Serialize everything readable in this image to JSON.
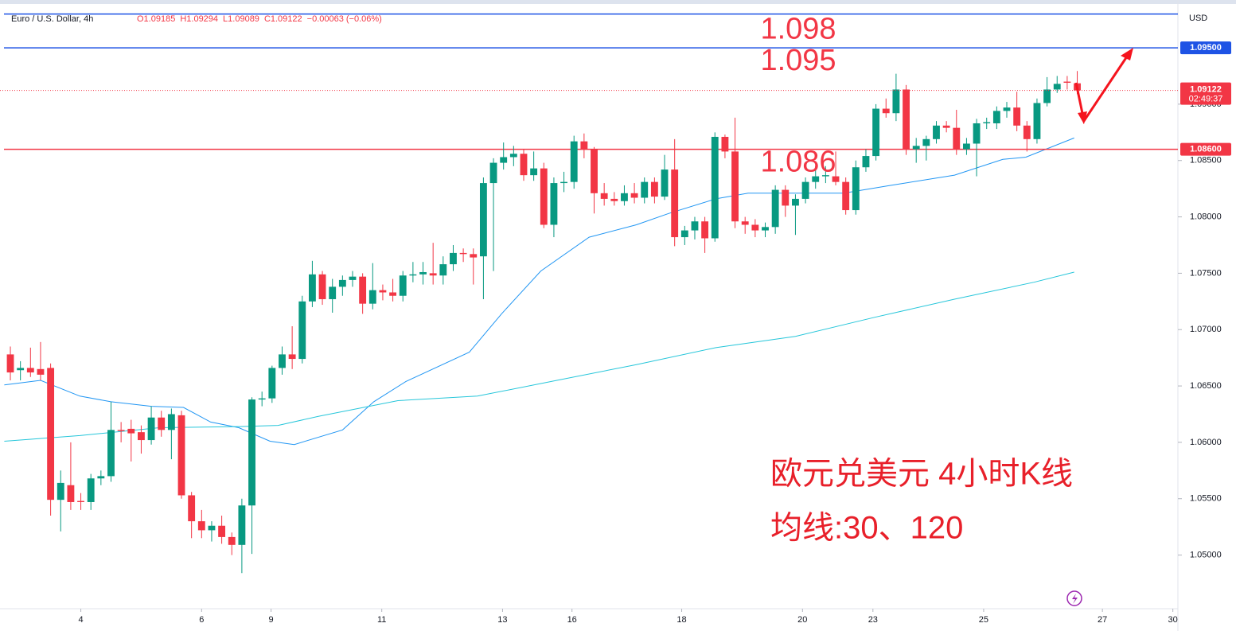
{
  "chart_data": {
    "type": "candlestick",
    "title": "Euro / U.S. Dollar, 4h",
    "ohlc_labels": [
      "O1.09185",
      "H1.09294",
      "L1.09089",
      "C1.09122",
      "−0.00063 (−0.06%)"
    ],
    "axis_unit": "USD",
    "up_color": "#089981",
    "down_color": "#f23645",
    "candles": [
      [
        1.0678,
        1.0685,
        1.0655,
        1.0662
      ],
      [
        1.0664,
        1.0672,
        1.0655,
        1.0666
      ],
      [
        1.0666,
        1.0684,
        1.0658,
        1.0662
      ],
      [
        1.0665,
        1.0689,
        1.0655,
        1.066
      ],
      [
        1.0666,
        1.067,
        1.0535,
        1.0549
      ],
      [
        1.0549,
        1.0575,
        1.0521,
        1.0564
      ],
      [
        1.0562,
        1.06,
        1.054,
        1.0547
      ],
      [
        1.0548,
        1.0555,
        1.054,
        1.0547
      ],
      [
        1.0547,
        1.0572,
        1.054,
        1.0568
      ],
      [
        1.0568,
        1.0575,
        1.0562,
        1.057
      ],
      [
        1.057,
        1.0636,
        1.0565,
        1.0611
      ],
      [
        1.0611,
        1.0618,
        1.06,
        1.061
      ],
      [
        1.0612,
        1.062,
        1.0583,
        1.0608
      ],
      [
        1.0609,
        1.0615,
        1.059,
        1.0602
      ],
      [
        1.0602,
        1.0632,
        1.0598,
        1.0622
      ],
      [
        1.0622,
        1.0628,
        1.0605,
        1.0611
      ],
      [
        1.0611,
        1.063,
        1.0585,
        1.0625
      ],
      [
        1.0624,
        1.0628,
        1.055,
        1.0553
      ],
      [
        1.0553,
        1.0556,
        1.0515,
        1.053
      ],
      [
        1.053,
        1.054,
        1.0515,
        1.0522
      ],
      [
        1.0522,
        1.053,
        1.0512,
        1.0526
      ],
      [
        1.0526,
        1.0535,
        1.051,
        1.0516
      ],
      [
        1.0516,
        1.052,
        1.05,
        1.0509
      ],
      [
        1.0509,
        1.055,
        1.0484,
        1.0544
      ],
      [
        1.0544,
        1.064,
        1.0501,
        1.0638
      ],
      [
        1.0638,
        1.0645,
        1.0632,
        1.0639
      ],
      [
        1.0639,
        1.0668,
        1.0635,
        1.0666
      ],
      [
        1.0666,
        1.0685,
        1.066,
        1.0678
      ],
      [
        1.0678,
        1.0703,
        1.0665,
        1.0674
      ],
      [
        1.0674,
        1.073,
        1.067,
        1.0725
      ],
      [
        1.0725,
        1.0761,
        1.072,
        1.0749
      ],
      [
        1.0749,
        1.0752,
        1.0722,
        1.0727
      ],
      [
        1.0727,
        1.0745,
        1.0715,
        1.0738
      ],
      [
        1.0738,
        1.0748,
        1.073,
        1.0744
      ],
      [
        1.0744,
        1.0752,
        1.0738,
        1.0747
      ],
      [
        1.0747,
        1.075,
        1.0714,
        1.0723
      ],
      [
        1.0723,
        1.0759,
        1.0718,
        1.0735
      ],
      [
        1.0735,
        1.074,
        1.0726,
        1.0733
      ],
      [
        1.0733,
        1.0745,
        1.0725,
        1.073
      ],
      [
        1.073,
        1.0752,
        1.0725,
        1.0748
      ],
      [
        1.0748,
        1.076,
        1.0742,
        1.0749
      ],
      [
        1.0749,
        1.076,
        1.074,
        1.0751
      ],
      [
        1.075,
        1.0777,
        1.074,
        1.0748
      ],
      [
        1.0748,
        1.0765,
        1.074,
        1.0758
      ],
      [
        1.0758,
        1.0775,
        1.0752,
        1.0768
      ],
      [
        1.0768,
        1.0772,
        1.076,
        1.0767
      ],
      [
        1.0767,
        1.0772,
        1.074,
        1.0764
      ],
      [
        1.0765,
        1.0835,
        1.0727,
        1.083
      ],
      [
        1.083,
        1.0852,
        1.0752,
        1.0848
      ],
      [
        1.0848,
        1.0866,
        1.0842,
        1.0853
      ],
      [
        1.0853,
        1.0863,
        1.0845,
        1.0856
      ],
      [
        1.0856,
        1.086,
        1.0832,
        1.0837
      ],
      [
        1.0837,
        1.0858,
        1.0832,
        1.0843
      ],
      [
        1.0843,
        1.0848,
        1.079,
        1.0793
      ],
      [
        1.0793,
        1.0835,
        1.0782,
        1.083
      ],
      [
        1.083,
        1.084,
        1.0822,
        1.0831
      ],
      [
        1.0831,
        1.0872,
        1.0825,
        1.0867
      ],
      [
        1.0867,
        1.0874,
        1.0852,
        1.086
      ],
      [
        1.086,
        1.0862,
        1.0803,
        1.0821
      ],
      [
        1.0821,
        1.083,
        1.081,
        1.0816
      ],
      [
        1.0816,
        1.0822,
        1.081,
        1.0814
      ],
      [
        1.0814,
        1.0828,
        1.081,
        1.0821
      ],
      [
        1.0821,
        1.083,
        1.0812,
        1.0817
      ],
      [
        1.0817,
        1.0835,
        1.0812,
        1.0831
      ],
      [
        1.0831,
        1.0835,
        1.0812,
        1.0818
      ],
      [
        1.0818,
        1.0855,
        1.0815,
        1.0842
      ],
      [
        1.0842,
        1.0869,
        1.0774,
        1.0782
      ],
      [
        1.0782,
        1.0792,
        1.0775,
        1.0788
      ],
      [
        1.0788,
        1.08,
        1.078,
        1.0796
      ],
      [
        1.0796,
        1.08,
        1.0768,
        1.0781
      ],
      [
        1.0781,
        1.0875,
        1.0778,
        1.0871
      ],
      [
        1.0871,
        1.0873,
        1.0852,
        1.0858
      ],
      [
        1.0858,
        1.0888,
        1.079,
        1.0796
      ],
      [
        1.0796,
        1.08,
        1.0785,
        1.0793
      ],
      [
        1.0793,
        1.0798,
        1.0782,
        1.0788
      ],
      [
        1.0788,
        1.0795,
        1.0782,
        1.0791
      ],
      [
        1.0791,
        1.0828,
        1.0785,
        1.0824
      ],
      [
        1.0824,
        1.0828,
        1.08,
        1.081
      ],
      [
        1.081,
        1.082,
        1.0784,
        1.0816
      ],
      [
        1.0816,
        1.0835,
        1.0812,
        1.0831
      ],
      [
        1.0831,
        1.0845,
        1.0825,
        1.0836
      ],
      [
        1.0836,
        1.0845,
        1.083,
        1.0837
      ],
      [
        1.0836,
        1.0858,
        1.0828,
        1.0831
      ],
      [
        1.0831,
        1.0835,
        1.0802,
        1.0806
      ],
      [
        1.0806,
        1.085,
        1.0802,
        1.0844
      ],
      [
        1.0844,
        1.086,
        1.084,
        1.0854
      ],
      [
        1.0854,
        1.09,
        1.085,
        1.0896
      ],
      [
        1.0896,
        1.0905,
        1.0888,
        1.0892
      ],
      [
        1.0892,
        1.0927,
        1.0885,
        1.0913
      ],
      [
        1.0913,
        1.0917,
        1.0855,
        1.086
      ],
      [
        1.086,
        1.087,
        1.0848,
        1.0863
      ],
      [
        1.0863,
        1.0872,
        1.085,
        1.0869
      ],
      [
        1.0869,
        1.0885,
        1.0865,
        1.0881
      ],
      [
        1.0881,
        1.0885,
        1.0875,
        1.0879
      ],
      [
        1.0879,
        1.0895,
        1.0855,
        1.086
      ],
      [
        1.086,
        1.087,
        1.0855,
        1.0865
      ],
      [
        1.0865,
        1.0887,
        1.0836,
        1.0883
      ],
      [
        1.0883,
        1.0888,
        1.0878,
        1.0884
      ],
      [
        1.0883,
        1.0898,
        1.0878,
        1.0894
      ],
      [
        1.0894,
        1.0902,
        1.0888,
        1.0897
      ],
      [
        1.0897,
        1.0911,
        1.0876,
        1.0881
      ],
      [
        1.0881,
        1.0885,
        1.0858,
        1.0869
      ],
      [
        1.0869,
        1.0905,
        1.0865,
        1.0901
      ],
      [
        1.0901,
        1.0924,
        1.0898,
        1.0913
      ],
      [
        1.0913,
        1.0925,
        1.091,
        1.0918
      ],
      [
        1.092,
        1.0925,
        1.0913,
        1.0919
      ],
      [
        1.09185,
        1.09294,
        1.09089,
        1.09122
      ]
    ],
    "moving_averages": [
      {
        "color": "#2196f3",
        "x": [
          -0.6,
          3.0,
          6.9,
          10.0,
          14.0,
          17.2,
          19.9,
          22.7,
          25.8,
          28.2,
          33.0,
          36.1,
          39.3,
          45.6,
          48.8,
          52.7,
          57.5,
          62.2,
          65.4,
          70.1,
          73.3,
          78.0,
          82.8,
          87.5,
          93.8,
          98.6,
          100.9,
          105.7
        ],
        "values": [
          1.0651,
          1.0655,
          1.0641,
          1.0636,
          1.0632,
          1.0631,
          1.0618,
          1.0613,
          1.0601,
          1.0598,
          1.0611,
          1.0636,
          1.0654,
          1.068,
          1.0714,
          1.0752,
          1.0782,
          1.0793,
          1.0803,
          1.0816,
          1.0821,
          1.0821,
          1.0821,
          1.0828,
          1.0837,
          1.0851,
          1.0853,
          1.087
        ]
      },
      {
        "color": "#26c6da",
        "x": [
          -0.6,
          6.9,
          14.8,
          22.7,
          26.6,
          30.6,
          38.5,
          46.4,
          54.3,
          62.2,
          70.1,
          78.0,
          85.9,
          93.8,
          101.7,
          105.7
        ],
        "values": [
          1.0601,
          1.0606,
          1.0613,
          1.0614,
          1.0615,
          1.0623,
          1.0637,
          1.0641,
          1.0655,
          1.0669,
          1.0684,
          1.0694,
          1.0711,
          1.0727,
          1.0742,
          1.0751
        ]
      }
    ],
    "xlim": [
      -1.03,
      116
    ],
    "xticks": [
      {
        "value": 7.0,
        "label": "4"
      },
      {
        "value": 19.0,
        "label": "6"
      },
      {
        "value": 25.9,
        "label": "9"
      },
      {
        "value": 36.9,
        "label": "11"
      },
      {
        "value": 48.9,
        "label": "13"
      },
      {
        "value": 55.8,
        "label": "16"
      },
      {
        "value": 66.7,
        "label": "18"
      },
      {
        "value": 78.7,
        "label": "20"
      },
      {
        "value": 85.7,
        "label": "23"
      },
      {
        "value": 96.7,
        "label": "25"
      },
      {
        "value": 108.5,
        "label": "27"
      },
      {
        "value": 115.5,
        "label": "30"
      }
    ],
    "ylim": [
      1.04524,
      1.09924
    ],
    "yticks": [
      {
        "value": 1.05,
        "label": "1.05000"
      },
      {
        "value": 1.055,
        "label": "1.05500"
      },
      {
        "value": 1.06,
        "label": "1.06000"
      },
      {
        "value": 1.065,
        "label": "1.06500"
      },
      {
        "value": 1.07,
        "label": "1.07000"
      },
      {
        "value": 1.075,
        "label": "1.07500"
      },
      {
        "value": 1.08,
        "label": "1.08000"
      },
      {
        "value": 1.085,
        "label": "1.08500"
      },
      {
        "value": 1.09,
        "label": "1.09000"
      }
    ],
    "levels": [
      {
        "value": 1.098,
        "label": "1.098",
        "line_color": "#1e53e5"
      },
      {
        "value": 1.095,
        "label": "1.095",
        "line_color": "#1e53e5",
        "axis_label": "1.09500"
      },
      {
        "value": 1.086,
        "label": "1.086",
        "line_color": "#f23645",
        "axis_label": "1.08600"
      }
    ],
    "last_price": {
      "value": 1.09122,
      "label": "1.09122",
      "countdown": "02:49:37"
    },
    "annotations": [
      "欧元兑美元 4小时K线",
      "均线:30、120"
    ]
  }
}
